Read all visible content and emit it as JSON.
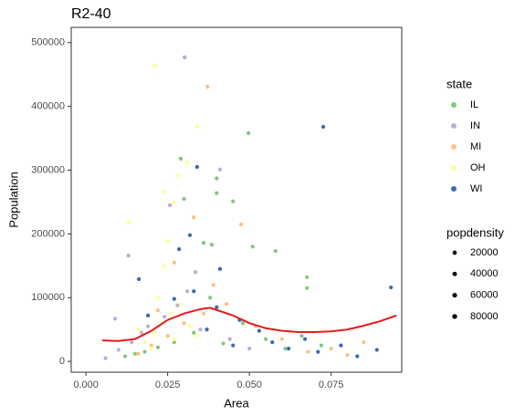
{
  "chart_data": {
    "type": "scatter",
    "title": "R2-40",
    "x_label": "Area",
    "y_label": "Population",
    "xlim": [
      -0.0045,
      0.0966
    ],
    "ylim": [
      -17000,
      524000
    ],
    "xticks": [
      {
        "value": 0,
        "label": "0.000"
      },
      {
        "value": 0.025,
        "label": "0.025"
      },
      {
        "value": 0.05,
        "label": "0.050"
      },
      {
        "value": 0.075,
        "label": "0.075"
      }
    ],
    "yticks": [
      0,
      100000,
      200000,
      300000,
      400000,
      500000
    ],
    "grid": false,
    "legend_title": "state",
    "series": [
      {
        "name": "IL",
        "color": "#7fc97f",
        "x": [
          0.0497,
          0.029,
          0.04,
          0.04,
          0.03,
          0.045,
          0.036,
          0.0385,
          0.051,
          0.058,
          0.0676,
          0.0676,
          0.012,
          0.018,
          0.022,
          0.027,
          0.033,
          0.042,
          0.048,
          0.055,
          0.061,
          0.066,
          0.072,
          0.015,
          0.038
        ],
        "values": [
          358000,
          318000,
          287000,
          264000,
          255000,
          251000,
          186000,
          183000,
          180000,
          173000,
          132000,
          115000,
          8000,
          15000,
          22000,
          30000,
          45000,
          28000,
          60000,
          35000,
          20000,
          40000,
          25000,
          12000,
          100000
        ],
        "sizes": [
          6000,
          9000,
          7000,
          6500,
          5500,
          4000,
          6000,
          4500,
          3000,
          2000,
          2000,
          2000,
          2000,
          2500,
          3000,
          3500,
          4000,
          3000,
          3000,
          2500,
          2000,
          2000,
          2000,
          2000,
          3000
        ]
      },
      {
        "name": "IN",
        "color": "#beaed4",
        "x": [
          0.0302,
          0.041,
          0.0257,
          0.013,
          0.0089,
          0.0335,
          0.006,
          0.01,
          0.014,
          0.019,
          0.024,
          0.028,
          0.035,
          0.044,
          0.05,
          0.017,
          0.031
        ],
        "values": [
          477000,
          301000,
          245000,
          166000,
          67000,
          140000,
          5000,
          18000,
          30000,
          55000,
          70000,
          88000,
          50000,
          35000,
          20000,
          45000,
          110000
        ],
        "sizes": [
          15000,
          5000,
          4000,
          8000,
          4000,
          4500,
          2000,
          2500,
          3000,
          3500,
          3000,
          3500,
          3000,
          2500,
          2000,
          2500,
          3000
        ]
      },
      {
        "name": "MI",
        "color": "#fdc086",
        "x": [
          0.0372,
          0.033,
          0.0475,
          0.027,
          0.02,
          0.025,
          0.03,
          0.036,
          0.043,
          0.052,
          0.06,
          0.068,
          0.075,
          0.08,
          0.085,
          0.016,
          0.022,
          0.039
        ],
        "values": [
          431000,
          226000,
          215000,
          155000,
          25000,
          40000,
          60000,
          75000,
          90000,
          55000,
          35000,
          15000,
          20000,
          10000,
          30000,
          12000,
          80000,
          120000
        ],
        "sizes": [
          9000,
          6000,
          3000,
          5000,
          3000,
          3500,
          4000,
          4500,
          3500,
          3000,
          2500,
          2000,
          2000,
          2000,
          2000,
          2500,
          4000,
          3500
        ]
      },
      {
        "name": "OH",
        "color": "#ffff99",
        "x": [
          0.0212,
          0.0341,
          0.031,
          0.028,
          0.024,
          0.027,
          0.0131,
          0.025,
          0.024,
          0.018,
          0.021,
          0.023,
          0.026,
          0.029,
          0.032,
          0.034,
          0.02,
          0.016,
          0.022,
          0.027
        ],
        "values": [
          464000,
          368000,
          312000,
          292000,
          266000,
          249000,
          218000,
          189000,
          149000,
          30000,
          45000,
          60000,
          75000,
          90000,
          55000,
          40000,
          20000,
          50000,
          100000,
          35000
        ],
        "sizes": [
          18000,
          10000,
          9000,
          7000,
          6000,
          6000,
          9000,
          5000,
          5000,
          6000,
          7000,
          6500,
          7000,
          6000,
          5500,
          5000,
          6000,
          5000,
          5500,
          6000
        ]
      },
      {
        "name": "WI",
        "color": "#386cb0",
        "x": [
          0.0726,
          0.034,
          0.0318,
          0.0285,
          0.0933,
          0.0162,
          0.041,
          0.019,
          0.027,
          0.033,
          0.04,
          0.047,
          0.053,
          0.057,
          0.062,
          0.067,
          0.071,
          0.078,
          0.083,
          0.089,
          0.045,
          0.037
        ],
        "values": [
          368000,
          305000,
          198000,
          176000,
          116000,
          129000,
          145000,
          72000,
          98000,
          110000,
          85000,
          65000,
          48000,
          30000,
          20000,
          35000,
          15000,
          25000,
          8000,
          18000,
          25000,
          50000
        ],
        "sizes": [
          2500,
          5000,
          4000,
          4500,
          2000,
          4000,
          3000,
          3500,
          4000,
          3500,
          3000,
          3000,
          2500,
          2000,
          2000,
          2000,
          2000,
          2000,
          2000,
          2000,
          2500,
          3000
        ]
      }
    ],
    "size_legend": {
      "title": "popdensity",
      "values": [
        20000,
        40000,
        60000,
        80000
      ]
    },
    "smooth": {
      "color": "#e41a1c",
      "x": [
        0.005,
        0.01,
        0.015,
        0.02,
        0.025,
        0.03,
        0.035,
        0.038,
        0.045,
        0.05,
        0.055,
        0.06,
        0.065,
        0.07,
        0.075,
        0.08,
        0.085,
        0.09,
        0.095
      ],
      "values": [
        33000,
        32000,
        35000,
        48000,
        65000,
        75000,
        82000,
        84000,
        72000,
        60000,
        52000,
        48000,
        46000,
        46000,
        47000,
        50000,
        56000,
        63000,
        72000
      ]
    }
  }
}
